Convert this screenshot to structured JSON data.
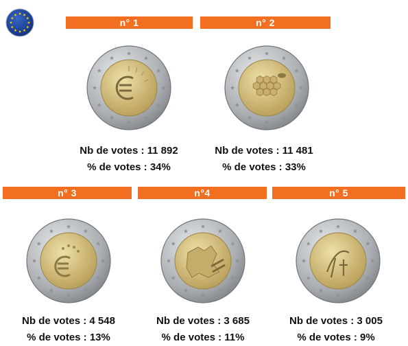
{
  "candidates": [
    {
      "number": "n° 1",
      "votes_text": "Nb de votes : 11 892",
      "percent_text": "% de votes : 34%"
    },
    {
      "number": "n° 2",
      "votes_text": "Nb de votes : 11 481",
      "percent_text": "% de votes : 33%"
    },
    {
      "number": "n° 3",
      "votes_text": "Nb de votes : 4 548",
      "percent_text": "% de votes : 13%"
    },
    {
      "number": "n°4",
      "votes_text": "Nb de votes : 3 685",
      "percent_text": "% de votes : 11%"
    },
    {
      "number": "n° 5",
      "votes_text": "Nb de votes : 3 005",
      "percent_text": "% de votes : 9%"
    }
  ],
  "colors": {
    "banner": "#f26f21",
    "eu_blue": "#1a3f8f",
    "eu_star": "#ffd400",
    "coin_ring": "#b9bcbf",
    "coin_center": "#d9c37f"
  },
  "icons": {
    "logo": "eu-flag-icon",
    "coin": "coin-icon"
  }
}
